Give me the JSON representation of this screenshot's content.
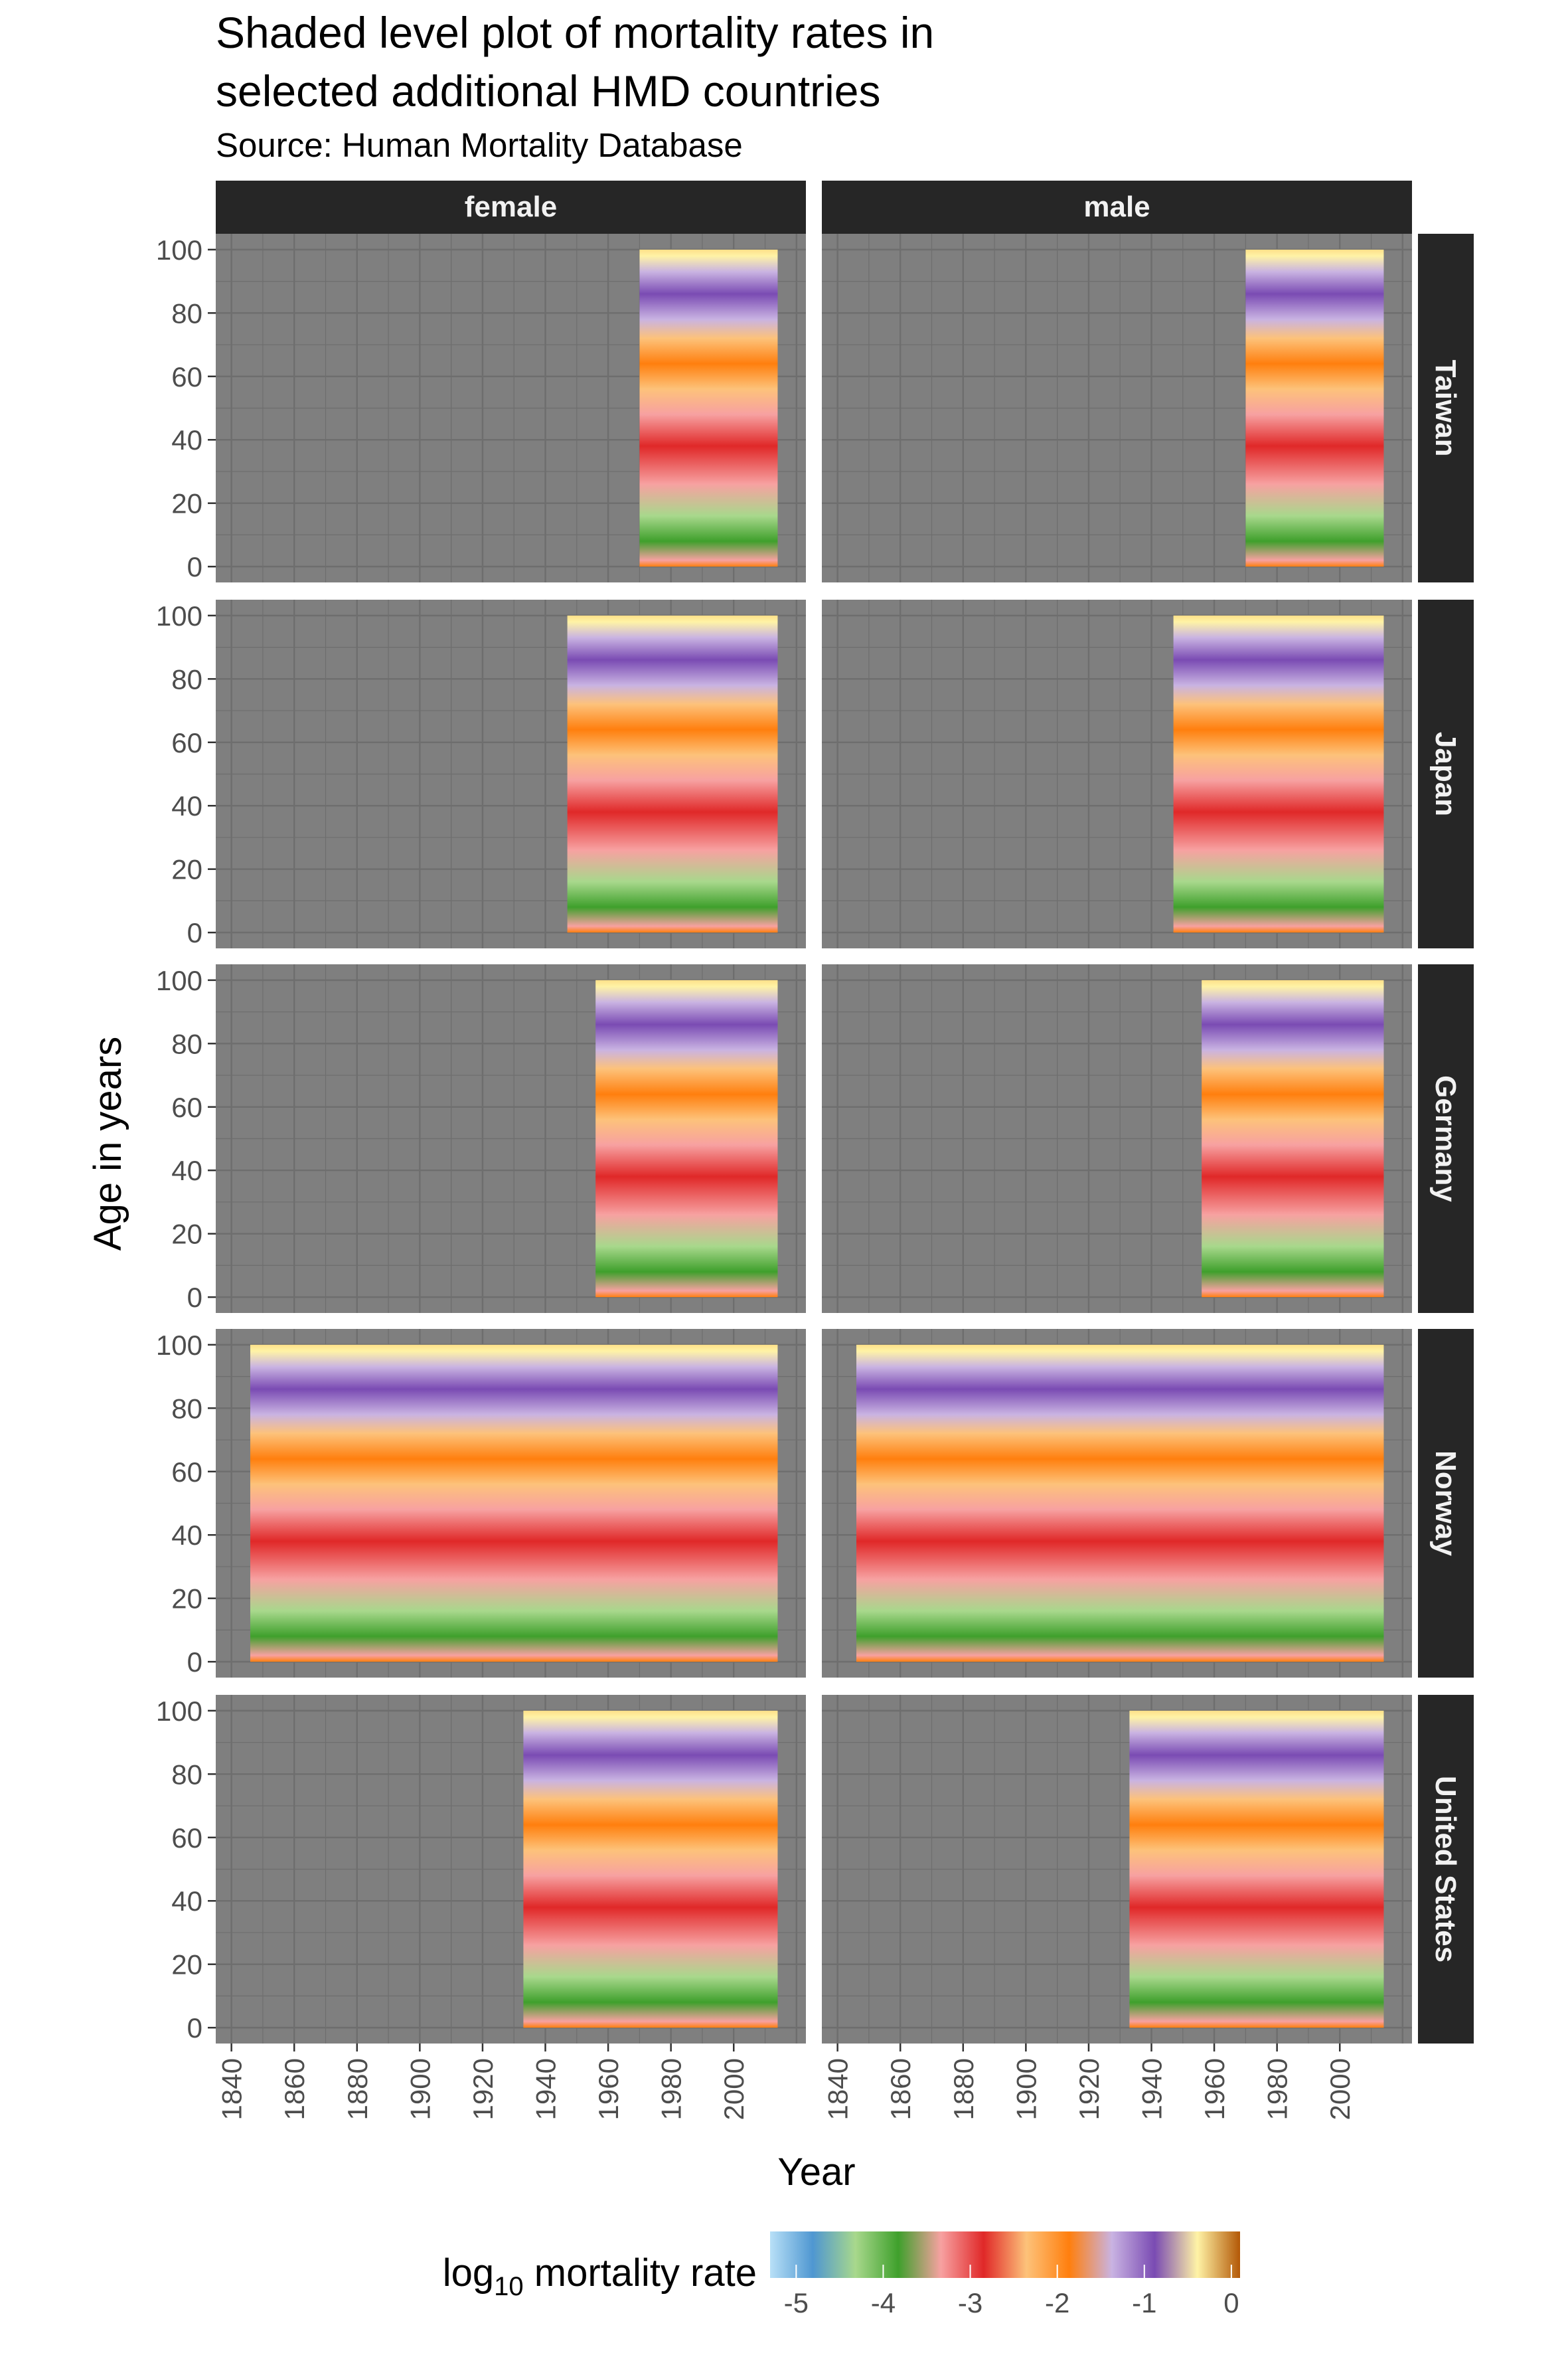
{
  "chart_data": {
    "type": "heatmap",
    "title": "Shaded level plot of mortality rates in selected additional HMD countries",
    "title_lines": [
      "Shaded level plot of mortality rates in",
      "selected additional HMD countries"
    ],
    "subtitle": "Source: Human Mortality Database",
    "xlabel": "Year",
    "ylabel": "Age in years",
    "legend": {
      "title_prefix": "log",
      "title_sub": "10",
      "title_suffix": " mortality rate",
      "ticks": [
        "-5",
        "-4",
        "-3",
        "-2",
        "-1",
        "0"
      ],
      "range": [
        -5.3,
        0.1
      ],
      "colors": [
        "#b8e0f7",
        "#4f97d1",
        "#a8d88c",
        "#3fa02c",
        "#f7a1a1",
        "#e02828",
        "#fdc27a",
        "#ff7f0e",
        "#c9b3e2",
        "#7a4bb3",
        "#fff3a6",
        "#b35806"
      ],
      "position": "bottom"
    },
    "xlim": [
      1835,
      2023
    ],
    "ylim": [
      -5,
      105
    ],
    "x_ticks": [
      "1840",
      "1860",
      "1880",
      "1900",
      "1920",
      "1940",
      "1960",
      "1980",
      "2000"
    ],
    "y_ticks": [
      "0",
      "20",
      "40",
      "60",
      "80",
      "100"
    ],
    "columns": [
      "female",
      "male"
    ],
    "rows": [
      "Taiwan",
      "Japan",
      "Germany",
      "Norway",
      "United States"
    ],
    "panels": [
      {
        "country": "Taiwan",
        "sex": "female",
        "start_year": 1970,
        "end_year": 2014
      },
      {
        "country": "Taiwan",
        "sex": "male",
        "start_year": 1970,
        "end_year": 2014
      },
      {
        "country": "Japan",
        "sex": "female",
        "start_year": 1947,
        "end_year": 2014
      },
      {
        "country": "Japan",
        "sex": "male",
        "start_year": 1947,
        "end_year": 2014
      },
      {
        "country": "Germany",
        "sex": "female",
        "start_year": 1956,
        "end_year": 2014
      },
      {
        "country": "Germany",
        "sex": "male",
        "start_year": 1956,
        "end_year": 2014
      },
      {
        "country": "Norway",
        "sex": "female",
        "start_year": 1846,
        "end_year": 2014
      },
      {
        "country": "Norway",
        "sex": "male",
        "start_year": 1846,
        "end_year": 2014
      },
      {
        "country": "United States",
        "sex": "female",
        "start_year": 1933,
        "end_year": 2014
      },
      {
        "country": "United States",
        "sex": "male",
        "start_year": 1933,
        "end_year": 2014
      }
    ],
    "age_range": [
      0,
      100
    ],
    "colors": {
      "panel_background": "#7f7f7f",
      "grid_line": "#6e6e6e",
      "strip_background": "#262626",
      "strip_text": "#f2f2f2",
      "axis_text": "#4d4d4d"
    }
  }
}
